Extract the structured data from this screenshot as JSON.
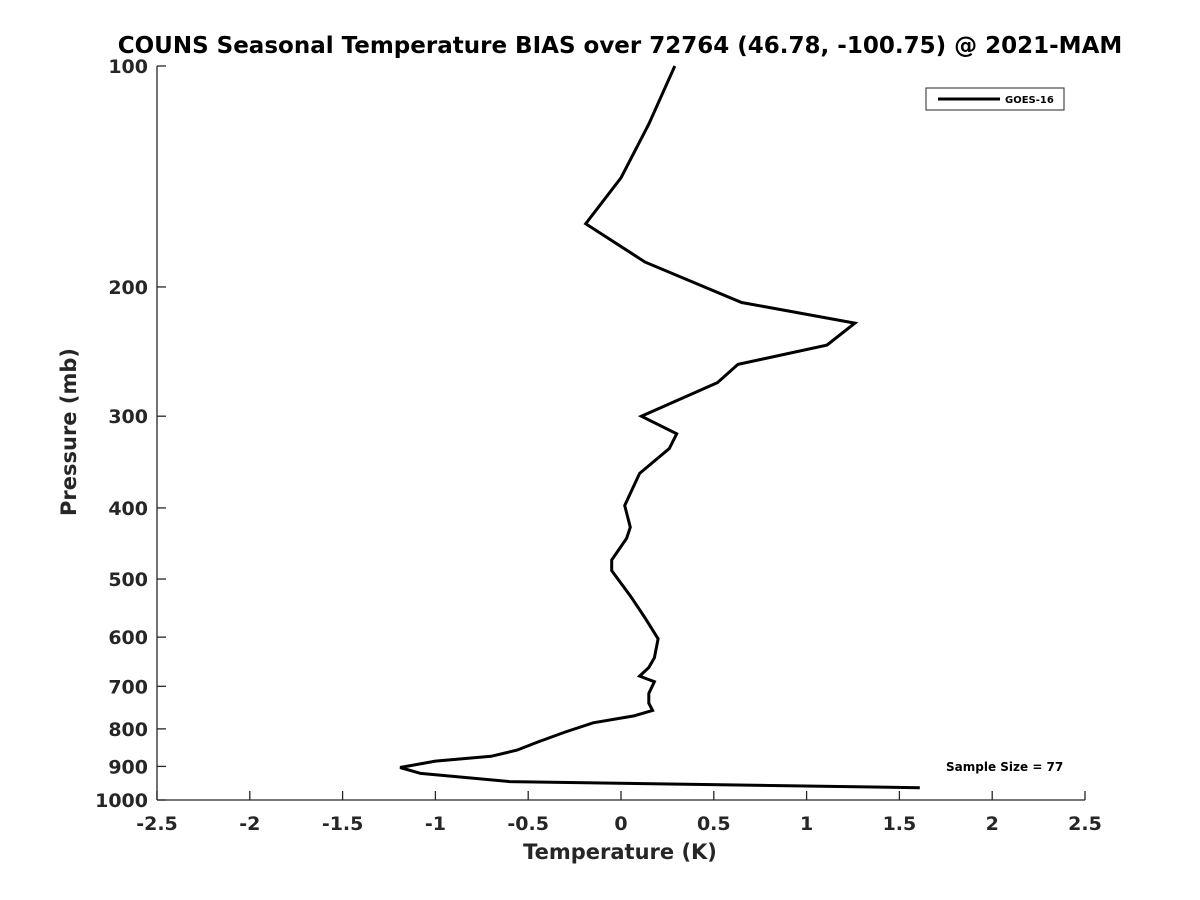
{
  "chart_data": {
    "type": "line",
    "title": "COUNS Seasonal Temperature BIAS over 72764 (46.78, -100.75) @ 2021-MAM",
    "xlabel": "Temperature (K)",
    "ylabel": "Pressure (mb)",
    "xlim": [
      -2.5,
      2.5
    ],
    "ylim": [
      1000,
      100
    ],
    "y_scale": "log",
    "y_reversed": true,
    "grid": false,
    "legend_position": "top-right",
    "xticks": [
      -2.5,
      -2,
      -1.5,
      -1,
      -0.5,
      0,
      0.5,
      1,
      1.5,
      2,
      2.5
    ],
    "xtick_labels": [
      "-2.5",
      "-2",
      "-1.5",
      "-1",
      "-0.5",
      "0",
      "0.5",
      "1",
      "1.5",
      "2",
      "2.5"
    ],
    "yticks": [
      100,
      200,
      300,
      400,
      500,
      600,
      700,
      800,
      900,
      1000
    ],
    "ytick_labels": [
      "100",
      "200",
      "300",
      "400",
      "500",
      "600",
      "700",
      "800",
      "900",
      "1000"
    ],
    "series": [
      {
        "name": "GOES-16",
        "color": "#000000",
        "x": [
          0.29,
          0.15,
          0.0,
          -0.19,
          0.13,
          0.65,
          1.26,
          1.11,
          0.63,
          0.52,
          0.11,
          0.3,
          0.26,
          0.1,
          0.02,
          0.05,
          0.03,
          -0.05,
          -0.05,
          0.05,
          0.13,
          0.2,
          0.18,
          0.15,
          0.1,
          0.18,
          0.15,
          0.15,
          0.17,
          0.07,
          -0.15,
          -0.3,
          -0.45,
          -0.56,
          -0.7,
          -1.0,
          -1.19,
          -1.08,
          -0.6,
          1.61
        ],
        "y": [
          100,
          120,
          142,
          164,
          185,
          210,
          224,
          240,
          255,
          270,
          300,
          317,
          332,
          359,
          397,
          425,
          440,
          471,
          487,
          527,
          565,
          603,
          640,
          660,
          678,
          690,
          716,
          738,
          755,
          768,
          785,
          808,
          834,
          855,
          872,
          885,
          903,
          920,
          944,
          962
        ]
      }
    ],
    "annotations": [
      "Sample Size = 77"
    ]
  }
}
